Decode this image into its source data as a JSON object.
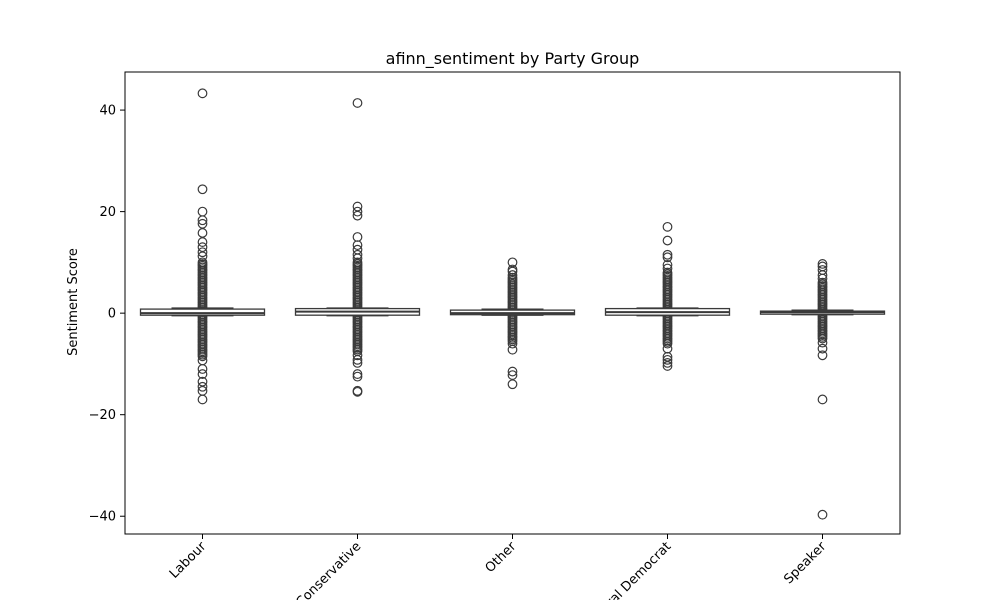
{
  "chart_data": {
    "type": "box",
    "title": "afinn_sentiment by Party Group",
    "xlabel": "",
    "ylabel": "Sentiment Score",
    "categories": [
      "Labour",
      "Conservative",
      "Other",
      "Liberal Democrat",
      "Speaker"
    ],
    "ylim": [
      -43.5,
      47.5
    ],
    "yticks": [
      -40,
      -20,
      0,
      20,
      40
    ],
    "grid": false,
    "box_color": "#3a3a3a",
    "boxes": [
      {
        "category": "Labour",
        "q1": -0.4,
        "median": 0,
        "q3": 0.8,
        "whisker_low": -0.5,
        "whisker_high": 1.0,
        "outlier_band": [
          -8.5,
          10
        ],
        "outliers": [
          43.3,
          24.4,
          20.0,
          18.3,
          17.6,
          15.8,
          14.0,
          13.0,
          12.0,
          11.2,
          -9.3,
          -11.0,
          -12.0,
          -13.5,
          -14.5,
          -15.3,
          -17.0
        ]
      },
      {
        "category": "Conservative",
        "q1": -0.4,
        "median": 0.3,
        "q3": 0.9,
        "whisker_low": -0.5,
        "whisker_high": 1.0,
        "outlier_band": [
          -7.5,
          10
        ],
        "outliers": [
          41.4,
          21.0,
          20.0,
          19.2,
          15.0,
          13.4,
          12.5,
          11.5,
          10.8,
          -8.3,
          -9.2,
          -9.8,
          -12.0,
          -12.5,
          -15.3,
          -15.5
        ]
      },
      {
        "category": "Other",
        "q1": -0.3,
        "median": 0,
        "q3": 0.6,
        "whisker_low": -0.4,
        "whisker_high": 0.8,
        "outlier_band": [
          -5.5,
          7
        ],
        "outliers": [
          10.0,
          8.6,
          8.2,
          7.5,
          -6.0,
          -7.2,
          -11.5,
          -12.2,
          -14.0
        ]
      },
      {
        "category": "Liberal Democrat",
        "q1": -0.4,
        "median": 0.2,
        "q3": 0.9,
        "whisker_low": -0.5,
        "whisker_high": 1.0,
        "outlier_band": [
          -6,
          8
        ],
        "outliers": [
          17.0,
          14.3,
          11.5,
          11.0,
          9.5,
          8.8,
          -7.0,
          -8.6,
          -9.2,
          -9.8,
          -10.4
        ]
      },
      {
        "category": "Speaker",
        "q1": -0.2,
        "median": 0.2,
        "q3": 0.4,
        "whisker_low": -0.3,
        "whisker_high": 0.6,
        "outlier_band": [
          -5,
          6
        ],
        "outliers": [
          9.7,
          9.2,
          8.5,
          7.5,
          6.8,
          -5.8,
          -7.0,
          -8.3,
          -17.0,
          -39.7
        ]
      }
    ]
  }
}
